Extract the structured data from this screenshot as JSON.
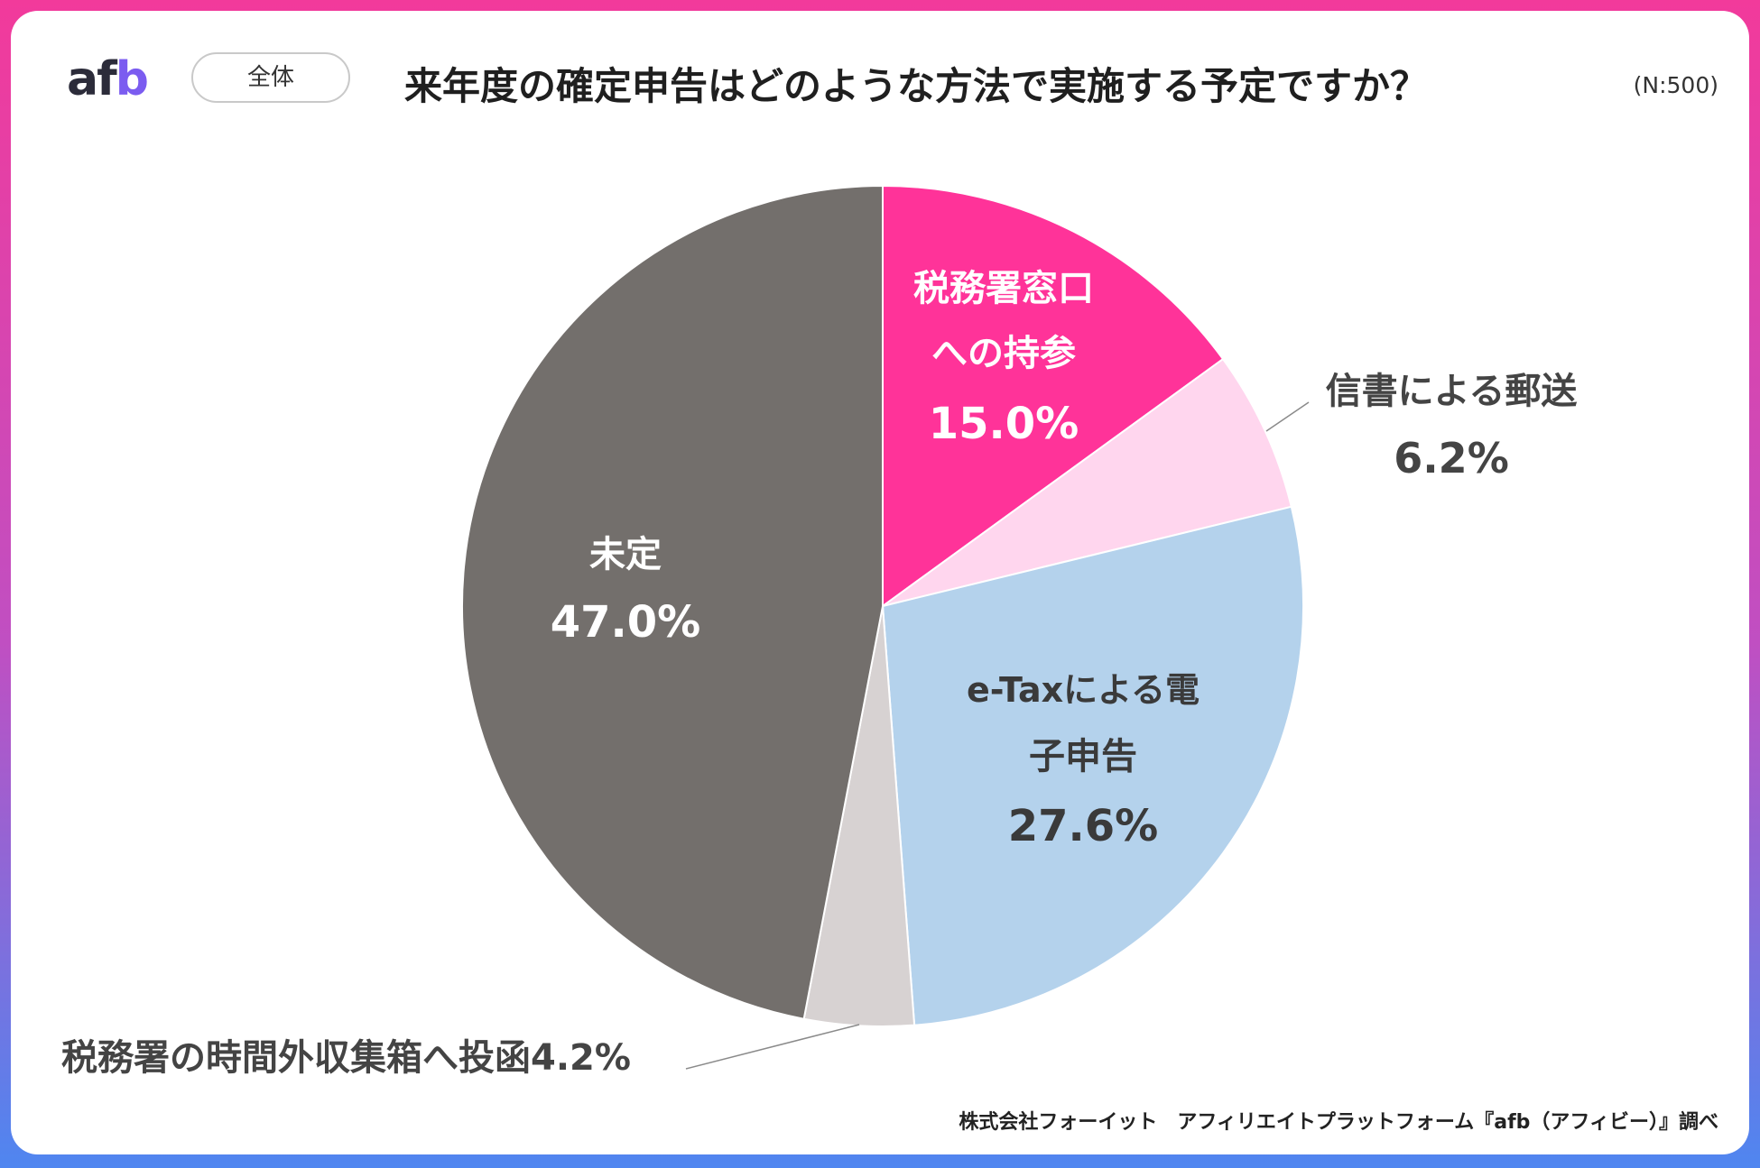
{
  "header": {
    "logo_a": "af",
    "logo_b": "b",
    "scope": "全体",
    "title": "来年度の確定申告はどのような方法で実施する予定ですか？",
    "n_label": "(N:500)"
  },
  "footer": {
    "credit": "株式会社フォーイット　アフィリエイトプラットフォーム『afb（アフィビー）』調べ"
  },
  "chart_data": {
    "type": "pie",
    "slices": [
      {
        "label": "税務署窓口への持参",
        "value": 15.0,
        "label_text": "15.0%",
        "color": "#ff3399"
      },
      {
        "label": "信書による郵送",
        "value": 6.2,
        "label_text": "6.2%",
        "color": "#ffd6ee"
      },
      {
        "label": "e-Taxによる電子申告",
        "value": 27.6,
        "label_text": "27.6%",
        "color": "#b4d2ec"
      },
      {
        "label": "税務署の時間外収集箱へ投函",
        "value": 4.2,
        "label_text": "4.2%",
        "color": "#d7d2d2"
      },
      {
        "label": "未定",
        "value": 47.0,
        "label_text": "47.0%",
        "color": "#736f6c"
      }
    ]
  }
}
